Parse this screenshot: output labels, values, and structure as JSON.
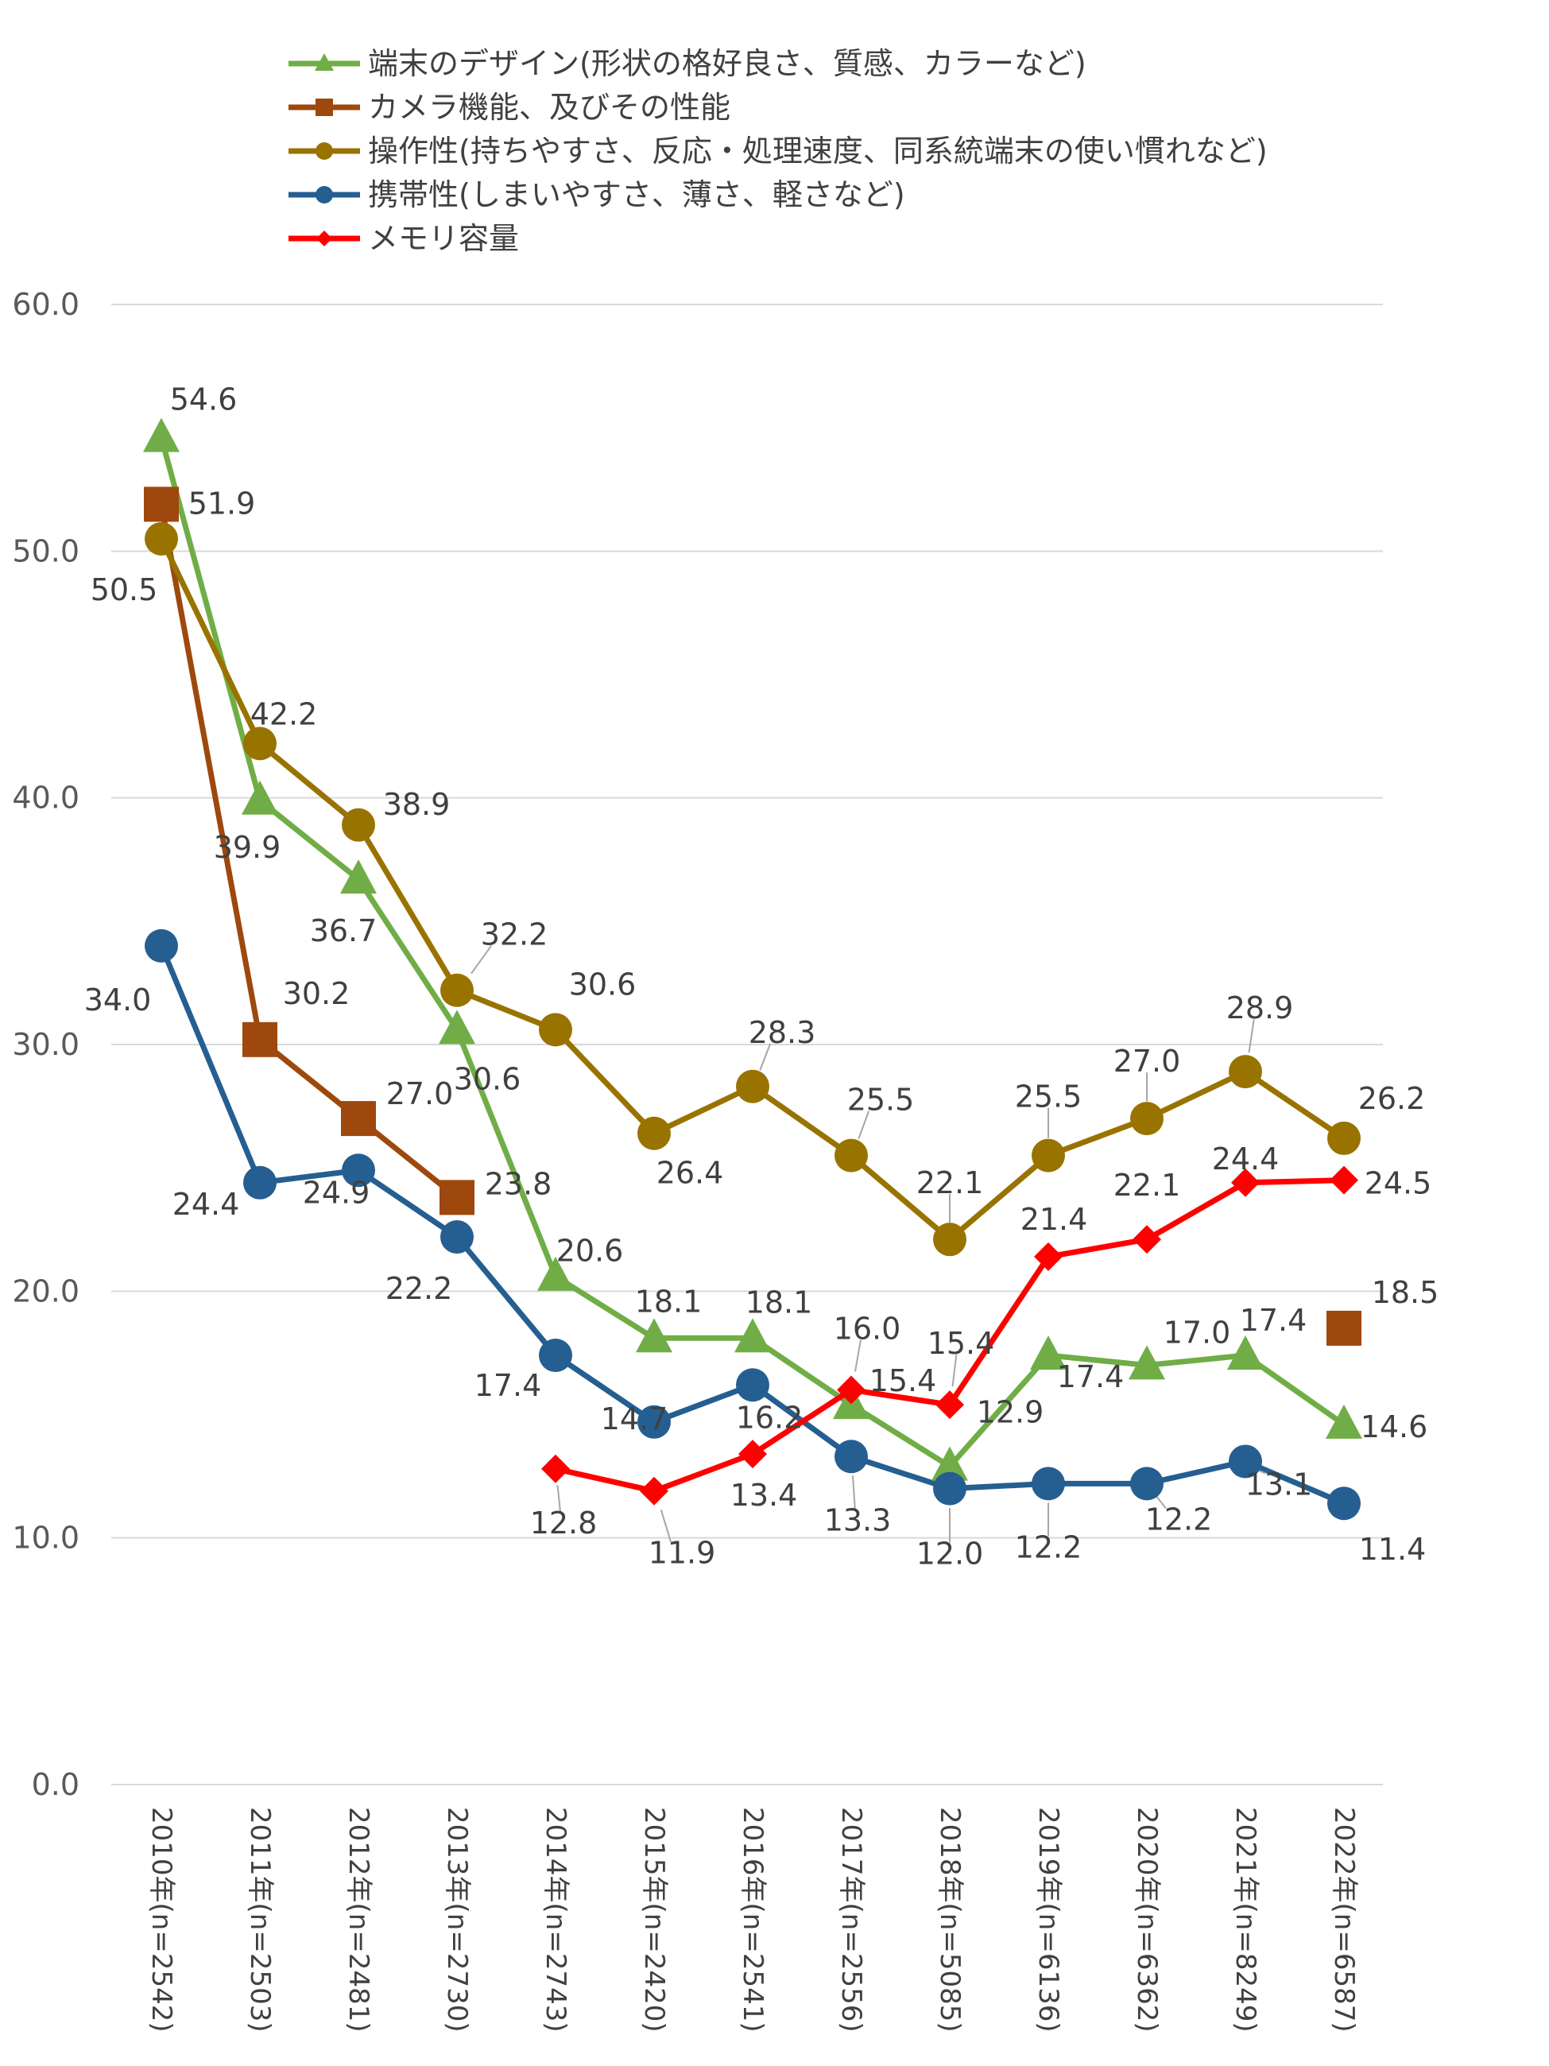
{
  "chart_data": {
    "type": "line",
    "categories": [
      "2010年(n=2542)",
      "2011年(n=2503)",
      "2012年(n=2481)",
      "2013年(n=2730)",
      "2014年(n=2743)",
      "2015年(n=2420)",
      "2016年(n=2541)",
      "2017年(n=2556)",
      "2018年(n=5085)",
      "2019年(n=6136)",
      "2020年(n=6362)",
      "2021年(n=8249)",
      "2022年(n=6587)"
    ],
    "ylim": [
      0,
      60
    ],
    "yticks": [
      "0.0",
      "10.0",
      "20.0",
      "30.0",
      "40.0",
      "50.0",
      "60.0"
    ],
    "grid": true,
    "legend_position": "top",
    "series": [
      {
        "name": "端末のデザイン(形状の格好良さ、質感、カラーなど)",
        "color": "#70AD47",
        "marker": "triangle",
        "values": [
          54.6,
          39.9,
          36.7,
          30.6,
          20.6,
          18.1,
          18.1,
          15.4,
          12.9,
          17.4,
          17.0,
          17.4,
          14.6
        ],
        "labels": [
          "54.6",
          "39.9",
          "36.7",
          "30.6",
          "20.6",
          "18.1",
          "18.1",
          "15.4",
          "12.9",
          "17.4",
          "17.0",
          "17.4",
          "14.6"
        ]
      },
      {
        "name": "カメラ機能、及びその性能",
        "color": "#9E480E",
        "marker": "square",
        "values": [
          51.9,
          30.2,
          27.0,
          23.8,
          null,
          null,
          null,
          null,
          null,
          null,
          null,
          null,
          18.5
        ],
        "labels": [
          "51.9",
          "30.2",
          "27.0",
          "23.8",
          null,
          null,
          null,
          null,
          null,
          null,
          null,
          null,
          "18.5"
        ]
      },
      {
        "name": "操作性(持ちやすさ、反応・処理速度、同系統端末の使い慣れなど)",
        "color": "#997300",
        "marker": "circle",
        "values": [
          50.5,
          42.2,
          38.9,
          32.2,
          30.6,
          26.4,
          28.3,
          25.5,
          22.1,
          25.5,
          27.0,
          28.9,
          26.2
        ],
        "labels": [
          "50.5",
          "42.2",
          "38.9",
          "32.2",
          "30.6",
          "26.4",
          "28.3",
          "25.5",
          "22.1",
          "25.5",
          "27.0",
          "28.9",
          "26.2"
        ]
      },
      {
        "name": "携帯性(しまいやすさ、薄さ、軽さなど)",
        "color": "#255E91",
        "marker": "circle",
        "values": [
          34.0,
          24.4,
          24.9,
          22.2,
          17.4,
          14.7,
          16.2,
          13.3,
          12.0,
          12.2,
          12.2,
          13.1,
          11.4
        ],
        "labels": [
          "34.0",
          "24.4",
          "24.9",
          "22.2",
          "17.4",
          "14.7",
          "16.2",
          "13.3",
          "12.0",
          "12.2",
          "12.2",
          "13.1",
          "11.4"
        ]
      },
      {
        "name": "メモリ容量",
        "color": "#FF0000",
        "marker": "diamond",
        "values": [
          null,
          null,
          null,
          null,
          12.8,
          11.9,
          13.4,
          16.0,
          15.4,
          21.4,
          22.1,
          24.4,
          24.5
        ],
        "labels": [
          null,
          null,
          null,
          null,
          "12.8",
          "11.9",
          "13.4",
          "16.0",
          "15.4",
          "21.4",
          "22.1",
          "24.4",
          "24.5"
        ]
      }
    ]
  }
}
